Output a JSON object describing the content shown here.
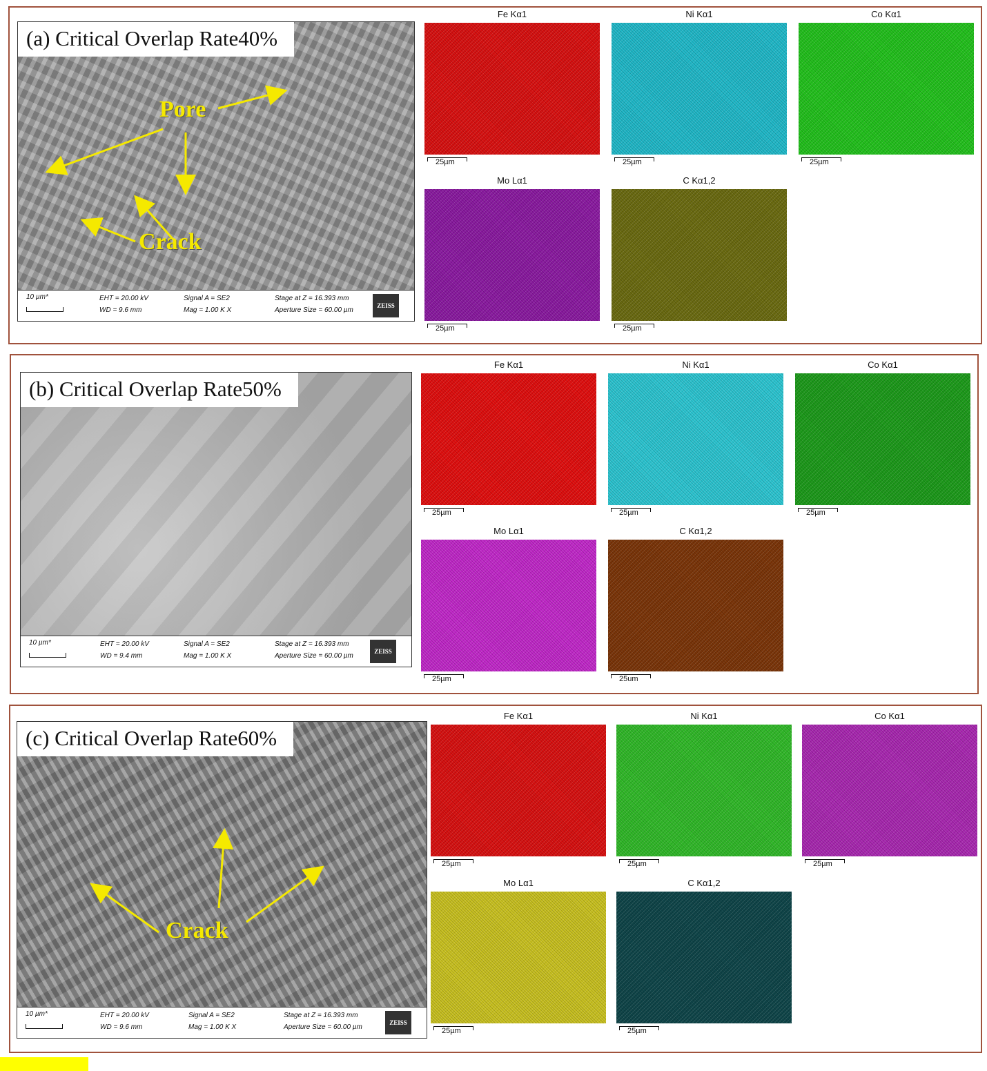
{
  "panels": [
    {
      "title": "(a) Critical Overlap Rate40%",
      "annotations": [
        "Pore",
        "Crack"
      ],
      "info": {
        "scale": "10 µm*",
        "eht": "EHT = 20.00 kV",
        "wd": "WD =  9.6 mm",
        "signal": "Signal A = SE2",
        "mag": "Mag =    1.00 K X",
        "stage": "Stage at Z = 16.393 mm",
        "aperture": "Aperture Size = 60.00 µm",
        "logo": "ZEISS"
      },
      "maps": [
        {
          "label": "Fe Kα1",
          "scale": "25µm",
          "color": "#d81010"
        },
        {
          "label": "Ni Kα1",
          "scale": "25µm",
          "color": "#20b8c8"
        },
        {
          "label": "Co Kα1",
          "scale": "25µm",
          "color": "#22c01c"
        },
        {
          "label": "Mo Lα1",
          "scale": "25µm",
          "color": "#8a1aa0"
        },
        {
          "label": "C Kα1,2",
          "scale": "25µm",
          "color": "#6a6a10"
        }
      ]
    },
    {
      "title": "(b) Critical Overlap Rate50%",
      "annotations": [],
      "info": {
        "scale": "10 µm*",
        "eht": "EHT = 20.00 kV",
        "wd": "WD =  9.4 mm",
        "signal": "Signal A = SE2",
        "mag": "Mag =    1.00 K X",
        "stage": "Stage at Z = 16.393 mm",
        "aperture": "Aperture Size = 60.00 µm",
        "logo": "ZEISS"
      },
      "maps": [
        {
          "label": "Fe Kα1",
          "scale": "25µm",
          "color": "#e00e0e"
        },
        {
          "label": "Ni Kα1",
          "scale": "25µm",
          "color": "#2cc4d0"
        },
        {
          "label": "Co Kα1",
          "scale": "25µm",
          "color": "#1c9a1a"
        },
        {
          "label": "Mo Lα1",
          "scale": "25µm",
          "color": "#c028c8"
        },
        {
          "label": "C Kα1,2",
          "scale": "25um",
          "color": "#7a3408"
        }
      ]
    },
    {
      "title": "(c) Critical Overlap Rate60%",
      "annotations": [
        "Crack"
      ],
      "info": {
        "scale": "10 µm*",
        "eht": "EHT = 20.00 kV",
        "wd": "WD =  9.6 mm",
        "signal": "Signal A = SE2",
        "mag": "Mag =    1.00 K X",
        "stage": "Stage at Z = 16.393 mm",
        "aperture": "Aperture Size = 60.00 µm",
        "logo": "ZEISS"
      },
      "maps": [
        {
          "label": "Fe Kα1",
          "scale": "25µm",
          "color": "#d81010"
        },
        {
          "label": "Ni Kα1",
          "scale": "25µm",
          "color": "#30b828"
        },
        {
          "label": "Co Kα1",
          "scale": "25µm",
          "color": "#a828b0"
        },
        {
          "label": "Mo Lα1",
          "scale": "25µm",
          "color": "#c8c020"
        },
        {
          "label": "C Kα1,2",
          "scale": "25µm",
          "color": "#0e4448"
        }
      ]
    }
  ]
}
